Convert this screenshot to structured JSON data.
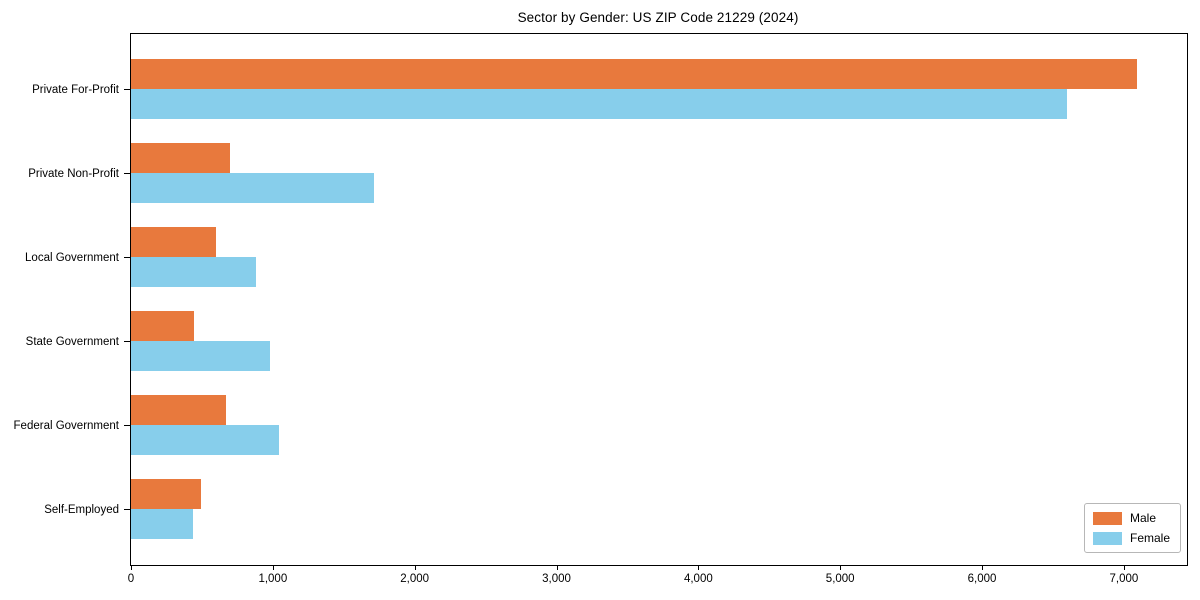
{
  "title": "Sector by Gender: US ZIP Code 21229 (2024)",
  "chart_data": {
    "type": "bar",
    "orientation": "horizontal",
    "title": "Sector by Gender: US ZIP Code 21229 (2024)",
    "xlabel": "",
    "ylabel": "",
    "categories": [
      "Private For-Profit",
      "Private Non-Profit",
      "Local Government",
      "State Government",
      "Federal Government",
      "Self-Employed"
    ],
    "series": [
      {
        "name": "Male",
        "color": "#E8793D",
        "values": [
          7090,
          700,
          600,
          445,
          670,
          490
        ]
      },
      {
        "name": "Female",
        "color": "#87CEEB",
        "values": [
          6600,
          1715,
          880,
          980,
          1040,
          440
        ]
      }
    ],
    "xlim": [
      0,
      7445
    ],
    "x_ticks": [
      0,
      1000,
      2000,
      3000,
      4000,
      5000,
      6000,
      7000
    ],
    "x_tick_labels": [
      "0",
      "1,000",
      "2,000",
      "3,000",
      "4,000",
      "5,000",
      "6,000",
      "7,000"
    ],
    "grid": false,
    "legend_position": "lower right"
  },
  "legend": {
    "items": [
      {
        "label": "Male",
        "color": "#E8793D"
      },
      {
        "label": "Female",
        "color": "#87CEEB"
      }
    ]
  }
}
